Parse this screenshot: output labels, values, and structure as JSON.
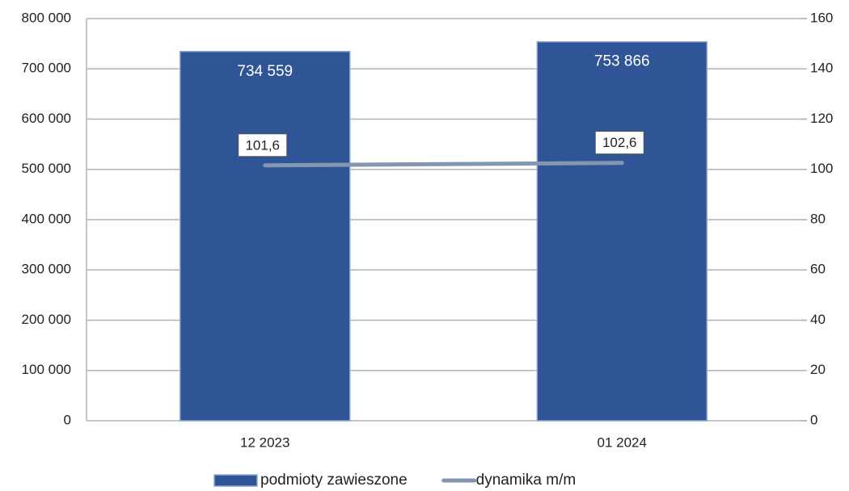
{
  "chart_data": {
    "type": "bar",
    "categories": [
      "12 2023",
      "01 2024"
    ],
    "series": [
      {
        "name": "podmioty zawieszone",
        "type": "bar",
        "color": "#2f5597",
        "values": [
          734559,
          753866
        ],
        "value_labels": [
          "734 559",
          "753 866"
        ]
      },
      {
        "name": "dynamika m/m",
        "type": "line",
        "axis": "y2",
        "color": "#8497b0",
        "values": [
          101.6,
          102.6
        ],
        "value_labels": [
          "101,6",
          "102,6"
        ]
      }
    ],
    "ylim": [
      0,
      800000
    ],
    "yticks": [
      {
        "value": 0,
        "label": "0"
      },
      {
        "value": 100000,
        "label": "100 000"
      },
      {
        "value": 200000,
        "label": "200 000"
      },
      {
        "value": 300000,
        "label": "300 000"
      },
      {
        "value": 400000,
        "label": "400 000"
      },
      {
        "value": 500000,
        "label": "500 000"
      },
      {
        "value": 600000,
        "label": "600 000"
      },
      {
        "value": 700000,
        "label": "700 000"
      },
      {
        "value": 800000,
        "label": "800 000"
      }
    ],
    "y2lim": [
      0,
      160
    ],
    "y2ticks": [
      0,
      20,
      40,
      60,
      80,
      100,
      120,
      140,
      160
    ],
    "grid": true,
    "legend": "bottom"
  }
}
